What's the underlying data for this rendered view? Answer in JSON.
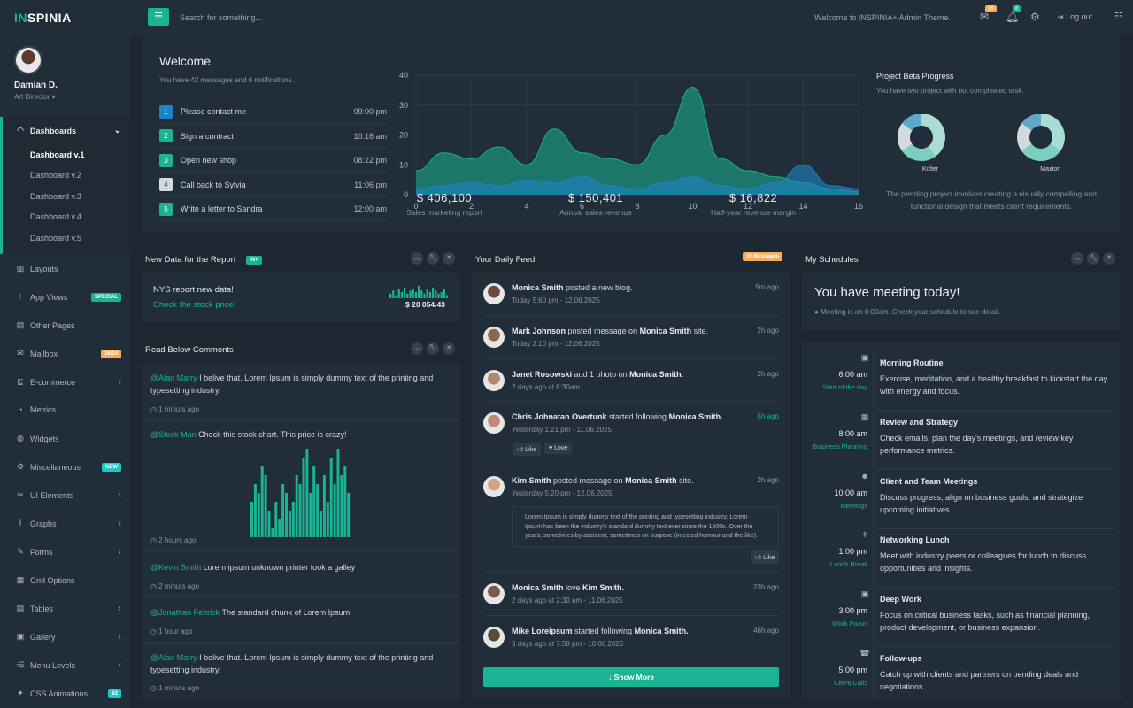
{
  "brand": {
    "logo_i": "IN",
    "logo_rest": "SPINIA"
  },
  "user": {
    "name": "Damian D.",
    "role": "Art Director"
  },
  "nav": {
    "dashboards": "Dashboards",
    "subs": [
      "Dashboard v.1",
      "Dashboard v.2",
      "Dashboard v.3",
      "Dashboard v.4",
      "Dashboard v.5"
    ],
    "items": [
      {
        "label": "Layouts",
        "icon": "layout-icon"
      },
      {
        "label": "App Views",
        "icon": "grid-icon",
        "badge": "SPECIAL",
        "badge_color": "#1ab394"
      },
      {
        "label": "Other Pages",
        "icon": "page-icon"
      },
      {
        "label": "Mailbox",
        "icon": "mail-icon",
        "badge": "16/24",
        "badge_color": "#f8ac59"
      },
      {
        "label": "E-commerce",
        "icon": "cart-icon",
        "chevron": true
      },
      {
        "label": "Metrics",
        "icon": "pie-icon"
      },
      {
        "label": "Widgets",
        "icon": "globe-icon"
      },
      {
        "label": "Miscellaneous",
        "icon": "gear-icon",
        "badge": "NEW",
        "badge_color": "#23c6c8"
      },
      {
        "label": "UI Elements",
        "icon": "tool-icon",
        "chevron": true
      },
      {
        "label": "Graphs",
        "icon": "graph-icon",
        "chevron": true
      },
      {
        "label": "Forms",
        "icon": "form-icon",
        "chevron": true
      },
      {
        "label": "Grid Options",
        "icon": "grid-options-icon"
      },
      {
        "label": "Tables",
        "icon": "table-icon",
        "chevron": true
      },
      {
        "label": "Gallery",
        "icon": "image-icon",
        "chevron": true
      },
      {
        "label": "Menu Levels",
        "icon": "share-icon",
        "chevron": true
      },
      {
        "label": "CSS Animations",
        "icon": "magic-icon",
        "badge": "62",
        "badge_color": "#23c6c8"
      }
    ]
  },
  "topbar": {
    "search_placeholder": "Search for something...",
    "welcome": "Welcome to INSPINIA+ Admin Theme.",
    "mail_count": "16",
    "bell_count": "8",
    "logout": "Log out"
  },
  "welcome": {
    "title": "Welcome",
    "subtitle": "You have 42 messages and 6 notifications.",
    "tasks": [
      {
        "n": "1",
        "label": "Please contact me",
        "time": "09:00 pm",
        "color": "#1c84c6"
      },
      {
        "n": "2",
        "label": "Sign a contract",
        "time": "10:16 am",
        "color": "#1ab394"
      },
      {
        "n": "3",
        "label": "Open new shop",
        "time": "08:22 pm",
        "color": "#1ab394"
      },
      {
        "n": "4",
        "label": "Call back to Sylvia",
        "time": "11:06 pm",
        "color": "#d1dade"
      },
      {
        "n": "5",
        "label": "Write a letter to Sandra",
        "time": "12:00 am",
        "color": "#1ab394"
      }
    ]
  },
  "chart_data": {
    "type": "area",
    "x": [
      0,
      2,
      4,
      6,
      8,
      10,
      12,
      14,
      16
    ],
    "ylim": [
      0,
      40
    ],
    "yticks": [
      0,
      10,
      20,
      30,
      40
    ],
    "series": [
      {
        "x": [
          0,
          1,
          2,
          3,
          4,
          5,
          6,
          7,
          8,
          9,
          10,
          11,
          12,
          13,
          14,
          15,
          16
        ],
        "values": [
          8,
          14,
          12,
          16,
          10,
          22,
          14,
          12,
          10,
          20,
          36,
          12,
          8,
          6,
          4,
          2,
          1
        ],
        "color": "#1ab394"
      },
      {
        "x": [
          0,
          1,
          2,
          3,
          4,
          5,
          6,
          7,
          8,
          9,
          10,
          11,
          12,
          13,
          14,
          15,
          16
        ],
        "values": [
          2,
          3,
          4,
          3,
          5,
          4,
          6,
          3,
          2,
          4,
          6,
          3,
          2,
          4,
          10,
          3,
          2
        ],
        "color": "#1c84c6"
      }
    ]
  },
  "stats": [
    {
      "value": "$ 406,100",
      "label": "Sales marketing report"
    },
    {
      "value": "$ 150,401",
      "label": "Annual sales revenue"
    },
    {
      "value": "$ 16,822",
      "label": "Half-year revenue margin"
    }
  ],
  "project": {
    "title": "Project Beta Progress",
    "subtitle": "You have two project with not compleated task.",
    "donuts": [
      {
        "label": "Kolter",
        "slices": [
          40,
          25,
          20,
          15
        ],
        "colors": [
          "#a8dcd4",
          "#7ccfc0",
          "#d1dade",
          "#5fa8c9"
        ]
      },
      {
        "label": "Maxtor",
        "slices": [
          35,
          30,
          20,
          15
        ],
        "colors": [
          "#a8dcd4",
          "#7ccfc0",
          "#d1dade",
          "#5fa8c9"
        ]
      }
    ],
    "desc": "The pending project involves creating a visually compelling and functional design that meets client requirements."
  },
  "report": {
    "title": "New Data for the Report",
    "badge": "IN+",
    "headline": "NYS report new data!",
    "link": "Check the stock price!",
    "amount": "$ 20 054.43",
    "spark": [
      3,
      5,
      2,
      6,
      4,
      7,
      3,
      5,
      6,
      4,
      8,
      5,
      3,
      6,
      4,
      7,
      5,
      3,
      4,
      6,
      2
    ]
  },
  "comments": {
    "title": "Read Below Comments",
    "list": [
      {
        "user": "@Alan Marry",
        "text": " I belive that. Lorem Ipsum is simply dummy text of the printing and typesetting industry.",
        "time": "1 minuts ago"
      },
      {
        "user": "@Stock Man",
        "text": " Check this stock chart. This price is crazy!",
        "time": "2 hours ago"
      },
      {
        "user": "@Kevin Smith",
        "text": " Lorem ipsum unknown printer took a galley",
        "time": "2 minuts ago"
      },
      {
        "user": "@Jonathan Febrick",
        "text": " The standard chunk of Lorem Ipsum",
        "time": "1 hour ago"
      },
      {
        "user": "@Alan Marry",
        "text": " I belive that. Lorem Ipsum is simply dummy text of the printing and typesetting industry.",
        "time": "1 minuts ago"
      }
    ],
    "bars": [
      4,
      6,
      5,
      8,
      7,
      3,
      1,
      4,
      2,
      6,
      5,
      3,
      4,
      7,
      6,
      9,
      10,
      5,
      8,
      6,
      3,
      7,
      4,
      9,
      6,
      10,
      7,
      8,
      5
    ]
  },
  "feed": {
    "title": "Your Daily Feed",
    "badge": "10 Messages",
    "items": [
      {
        "name": "Monica Smith",
        "action": " posted a new blog.",
        "target": "",
        "tail": "",
        "sub": "Today 5:60 pm - 12.06.2025",
        "ago": "5m ago"
      },
      {
        "name": "Mark Johnson",
        "action": " posted message on ",
        "target": "Monica Smith",
        "tail": " site.",
        "sub": "Today 2:10 pm - 12.06.2025",
        "ago": "2h ago"
      },
      {
        "name": "Janet Rosowski",
        "action": " add 1 photo on ",
        "target": "Monica Smith.",
        "tail": "",
        "sub": "2 days ago at 8:30am",
        "ago": "2h ago"
      },
      {
        "name": "Chris Johnatan Overtunk",
        "action": " started following ",
        "target": "Monica Smith.",
        "tail": "",
        "sub": "Yesterday 1:21 pm - 11.06.2025",
        "ago": "5h ago"
      },
      {
        "name": "Kim Smith",
        "action": " posted message on ",
        "target": "Monica Smith",
        "tail": " site.",
        "sub": "Yesterday 5:20 pm - 12.06.2025",
        "ago": "2h ago"
      },
      {
        "name": "Monica Smith",
        "action": " love ",
        "target": "Kim Smith.",
        "tail": "",
        "sub": "2 days ago at 2:30 am - 11.06.2025",
        "ago": "23h ago"
      },
      {
        "name": "Mike Loreipsum",
        "action": " started following ",
        "target": "Monica Smith.",
        "tail": "",
        "sub": "3 days ago at 7:58 pm - 10.06.2025",
        "ago": "46h ago"
      }
    ],
    "like": "Like",
    "love": "Love",
    "quote": "Lorem Ipsum is simply dummy text of the printing and typesetting industry. Lorem Ipsum has been the industry's standard dummy text ever since the 1500s. Over the years, sometimes by accident, sometimes on purpose (injected humour and the like).",
    "show_more": "Show More"
  },
  "schedule": {
    "title": "My Schedules",
    "meeting": "You have meeting today!",
    "meeting_sub": "Meeting is on 6:00am. Check your schedule to see detail.",
    "items": [
      {
        "time": "6:00 am",
        "sub": "Start of the day",
        "title": "Morning Routine",
        "desc": "Exercise, meditation, and a healthy breakfast to kickstart the day with energy and focus.",
        "icon": "briefcase-icon"
      },
      {
        "time": "8:00 am",
        "sub": "Business Planning",
        "title": "Review and Strategy",
        "desc": "Check emails, plan the day's meetings, and review key performance metrics.",
        "icon": "calendar-icon"
      },
      {
        "time": "10:00 am",
        "sub": "Meetings",
        "title": "Client and Team Meetings",
        "desc": "Discuss progress, align on business goals, and strategize upcoming initiatives.",
        "icon": "users-icon"
      },
      {
        "time": "1:00 pm",
        "sub": "Lunch Break",
        "title": "Networking Lunch",
        "desc": "Meet with industry peers or colleagues for lunch to discuss opportunities and insights.",
        "icon": "cutlery-icon"
      },
      {
        "time": "3:00 pm",
        "sub": "Work Focus",
        "title": "Deep Work",
        "desc": "Focus on critical business tasks, such as financial planning, product development, or business expansion.",
        "icon": "briefcase-icon"
      },
      {
        "time": "5:00 pm",
        "sub": "Client Calls",
        "title": "Follow-ups",
        "desc": "Catch up with clients and partners on pending deals and negotiations.",
        "icon": "phone-icon"
      }
    ]
  }
}
